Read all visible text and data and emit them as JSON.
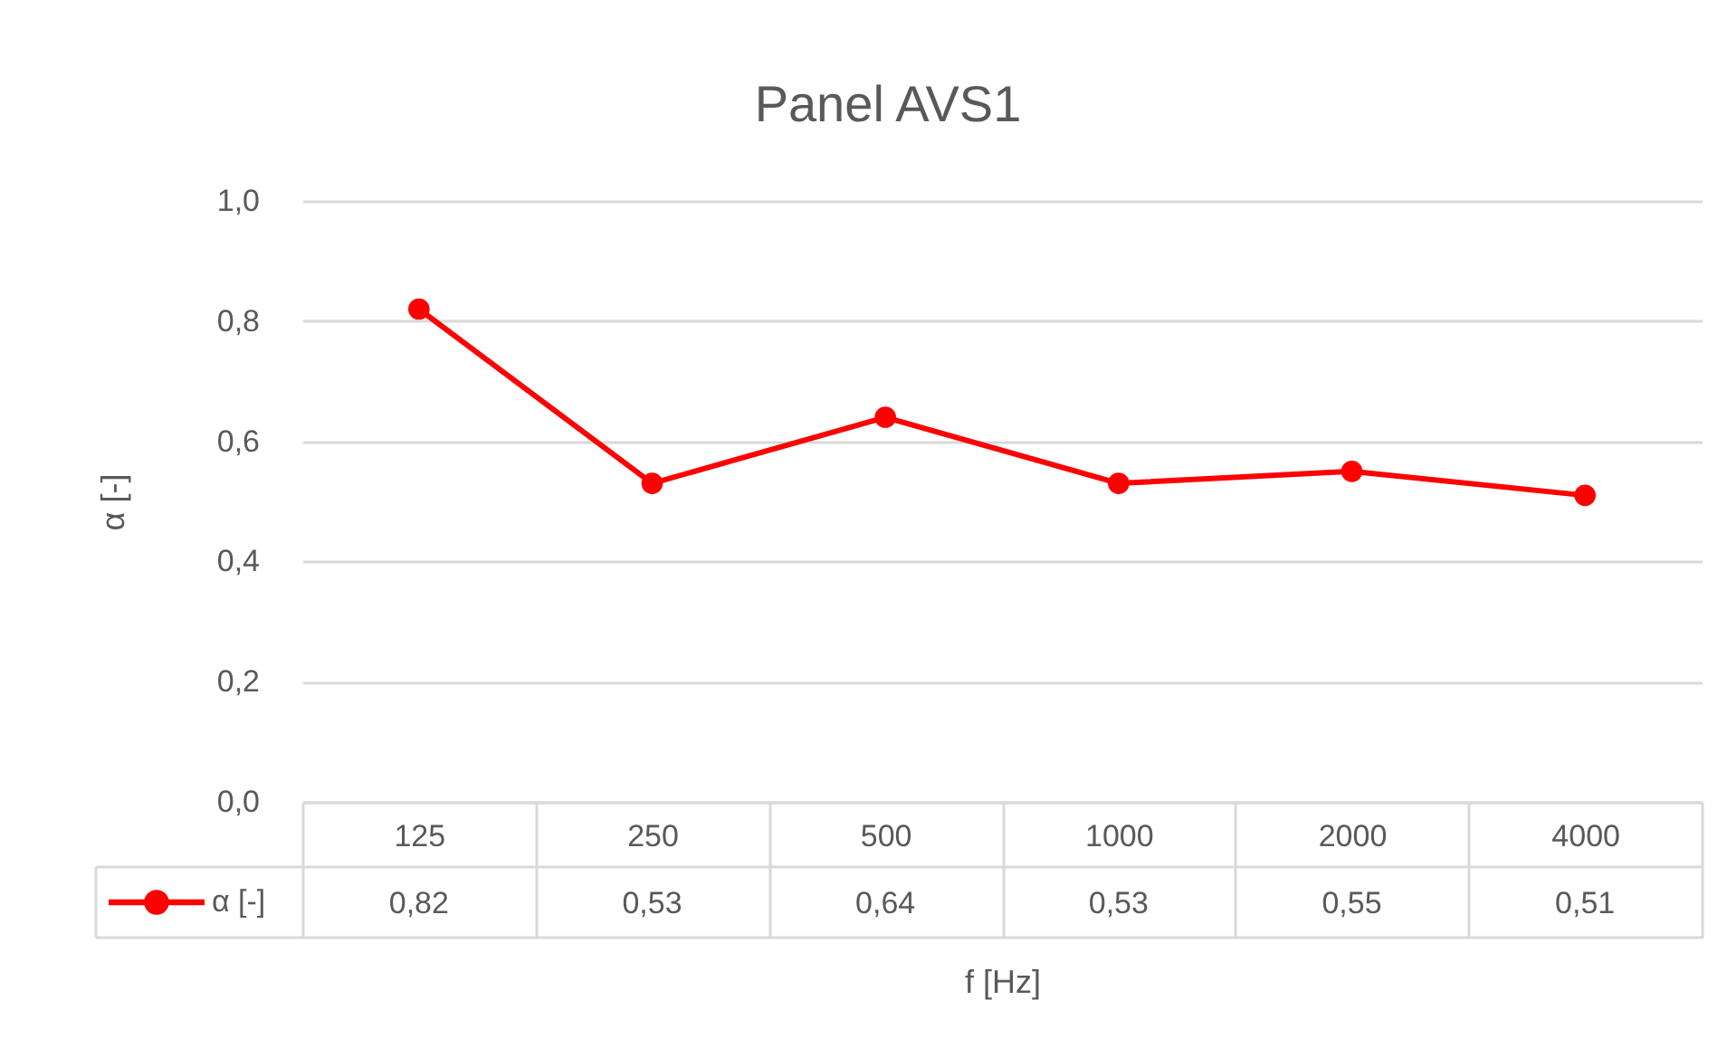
{
  "chart_data": {
    "type": "line",
    "title": "Panel AVS1",
    "xlabel": "f [Hz]",
    "ylabel": "α [-]",
    "categories": [
      "125",
      "250",
      "500",
      "1000",
      "2000",
      "4000"
    ],
    "series": [
      {
        "name": "α [-]",
        "color": "#ff0000",
        "values": [
          0.82,
          0.53,
          0.64,
          0.53,
          0.55,
          0.51
        ],
        "value_labels": [
          "0,82",
          "0,53",
          "0,64",
          "0,53",
          "0,55",
          "0,51"
        ]
      }
    ],
    "ylim": [
      0,
      1
    ],
    "yticks": [
      {
        "value": 0,
        "label": "0,0"
      },
      {
        "value": 0.2,
        "label": "0,2"
      },
      {
        "value": 0.4,
        "label": "0,4"
      },
      {
        "value": 0.6,
        "label": "0,6"
      },
      {
        "value": 0.8,
        "label": "0,8"
      },
      {
        "value": 1,
        "label": "1,0"
      }
    ],
    "grid": "y",
    "legend": "bottom",
    "marker": "circle",
    "line_style": "solid"
  }
}
